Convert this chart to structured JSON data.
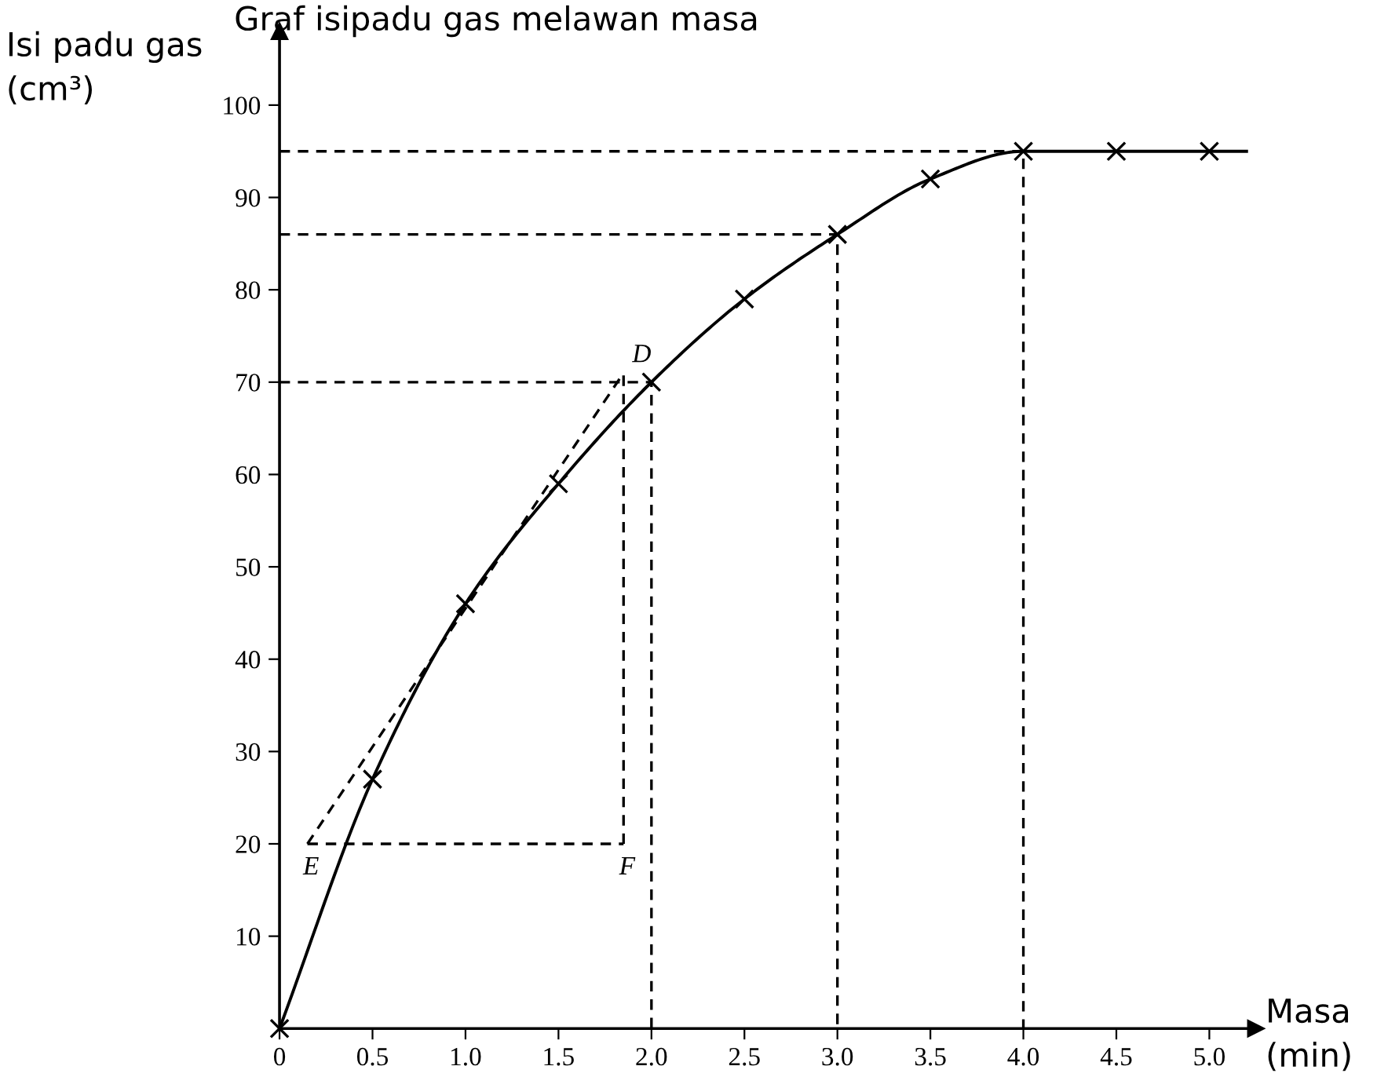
{
  "chart_data": {
    "type": "line",
    "title": "Graf isipadu gas melawan masa",
    "xlabel": "Masa\n(min)",
    "ylabel": "Isi padu gas\n(cm³)",
    "xlim": [
      0,
      5.25
    ],
    "ylim": [
      0,
      108
    ],
    "xticks": [
      {
        "value": 0,
        "label": "0"
      },
      0.5,
      {
        "value": 1,
        "label": "1.0"
      },
      1.5,
      {
        "value": 2,
        "label": "2.0"
      },
      2.5,
      {
        "value": 3,
        "label": "3.0"
      },
      3.5,
      {
        "value": 4,
        "label": "4.0"
      },
      4.5,
      {
        "value": 5,
        "label": "5.0"
      }
    ],
    "yticks": [
      10,
      20,
      30,
      40,
      50,
      60,
      70,
      80,
      90,
      100
    ],
    "grid": false,
    "legend": false,
    "series": [
      {
        "color": "#000000",
        "marker": "cross",
        "line_style": "solid",
        "x": [
          0,
          0.5,
          1.0,
          1.5,
          2.0,
          2.5,
          3.0,
          3.5,
          4.0,
          4.5,
          5.0
        ],
        "values": [
          0,
          27,
          46,
          59,
          70,
          79,
          86,
          92,
          95,
          95,
          95
        ]
      },
      {
        "color": "#000000",
        "marker": "none",
        "line_style": "solid",
        "x": [
          5.0,
          5.2
        ],
        "values": [
          95,
          95
        ]
      },
      {
        "color": "#000000",
        "marker": "none",
        "line_style": "dashed",
        "x": [
          0.15,
          1.85
        ],
        "values": [
          20,
          71
        ]
      },
      {
        "color": "#000000",
        "marker": "none",
        "line_style": "dashed",
        "x": [
          0.15,
          1.85
        ],
        "values": [
          20,
          20
        ]
      },
      {
        "color": "#000000",
        "marker": "none",
        "line_style": "dashed",
        "x": [
          1.85,
          1.85
        ],
        "values": [
          20,
          71
        ]
      },
      {
        "color": "#000000",
        "marker": "none",
        "line_style": "dashed",
        "x": [
          0,
          2,
          2
        ],
        "values": [
          70,
          70,
          0
        ]
      },
      {
        "color": "#000000",
        "marker": "none",
        "line_style": "dashed",
        "x": [
          0,
          3,
          3
        ],
        "values": [
          86,
          86,
          0
        ]
      },
      {
        "color": "#000000",
        "marker": "none",
        "line_style": "dashed",
        "x": [
          0,
          4,
          4
        ],
        "values": [
          95,
          95,
          0
        ]
      }
    ],
    "annotations": [
      "D",
      "E",
      "F"
    ]
  }
}
